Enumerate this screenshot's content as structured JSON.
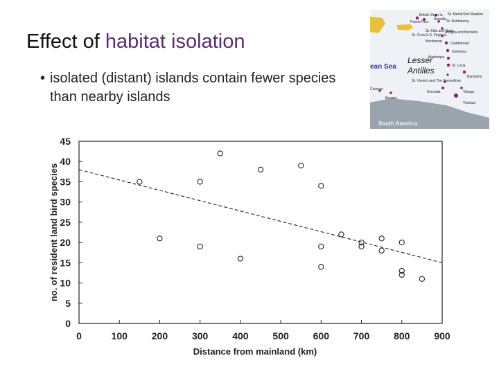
{
  "slide": {
    "title_prefix": "Effect of ",
    "title_highlight": "habitat isolation",
    "bullet_symbol": "•",
    "bullet_text": "isolated (distant) islands contain fewer species than nearby islands"
  },
  "map": {
    "sea_label": "ean Sea",
    "region_label_line1": "Lesser",
    "region_label_line2": "Antilles",
    "continent_label": "South America",
    "labels": [
      "British Virgin Is.",
      "Anguilla",
      "St. Martin/Sint Maarten",
      "Puerto Rico",
      "St. Barthelemy",
      "St. Croix U.S. Virgin Is.",
      "St. Kitts and Nevis",
      "Antigua and Barbuda",
      "Montserrat",
      "Guadeloupe",
      "Dominica",
      "Martinique",
      "St. Lucia",
      "Barbados",
      "St. Vincent and The Grenadines",
      "Grenada",
      "Tobago",
      "Trinidad",
      "Curacao",
      "Bonaire"
    ],
    "colors": {
      "land": "#e6c23c",
      "sea": "#eef2f6",
      "continent": "#9aa4ac",
      "island_dot": "#8a1b6f"
    }
  },
  "chart_data": {
    "type": "scatter",
    "xlabel": "Distance from mainland (km)",
    "ylabel": "no. of resident land bird species",
    "xlim": [
      0,
      900
    ],
    "ylim": [
      0,
      45
    ],
    "xticks": [
      0,
      100,
      200,
      300,
      400,
      500,
      600,
      700,
      800,
      900
    ],
    "yticks": [
      0,
      5,
      10,
      15,
      20,
      25,
      30,
      35,
      40,
      45
    ],
    "grid": false,
    "points": [
      {
        "x": 150,
        "y": 35
      },
      {
        "x": 200,
        "y": 21
      },
      {
        "x": 300,
        "y": 35
      },
      {
        "x": 300,
        "y": 19
      },
      {
        "x": 350,
        "y": 42
      },
      {
        "x": 400,
        "y": 16
      },
      {
        "x": 450,
        "y": 38
      },
      {
        "x": 550,
        "y": 39
      },
      {
        "x": 600,
        "y": 34
      },
      {
        "x": 600,
        "y": 19
      },
      {
        "x": 600,
        "y": 14
      },
      {
        "x": 650,
        "y": 22
      },
      {
        "x": 700,
        "y": 20
      },
      {
        "x": 700,
        "y": 19
      },
      {
        "x": 750,
        "y": 21
      },
      {
        "x": 750,
        "y": 18
      },
      {
        "x": 800,
        "y": 20
      },
      {
        "x": 800,
        "y": 13
      },
      {
        "x": 800,
        "y": 12
      },
      {
        "x": 850,
        "y": 11
      }
    ],
    "trendline": {
      "x": [
        0,
        900
      ],
      "y": [
        38,
        15
      ],
      "style": "dashed"
    }
  }
}
